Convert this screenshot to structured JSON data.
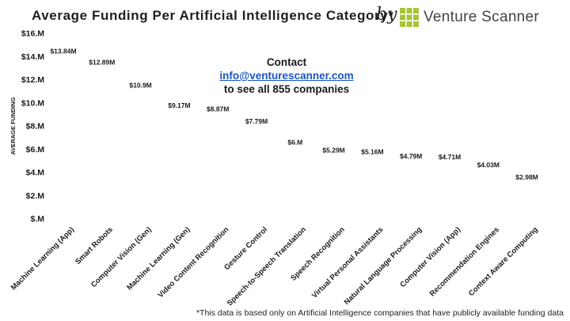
{
  "header": {
    "title": "Average Funding Per Artificial Intelligence Category*",
    "by": "by",
    "brand": "Venture Scanner",
    "brand_icon": "grid-logo-icon",
    "brand_color": "#a8c43a"
  },
  "contact": {
    "line1": "Contact",
    "email": "info@venturescanner.com",
    "line3": "to see all 855 companies"
  },
  "footnote": "*This data is based only on Artificial Intelligence companies that have publicly available funding data",
  "chart_data": {
    "type": "bar",
    "style": "pictograph",
    "icon": "robot-icon",
    "unit_per_icon": 2,
    "ylabel": "AVERAGE FUNDING",
    "ylim": [
      0,
      16
    ],
    "yticks": [
      0,
      2,
      4,
      6,
      8,
      10,
      12,
      14,
      16
    ],
    "ytick_labels": [
      "$.M",
      "$2.M",
      "$4.M",
      "$6.M",
      "$8.M",
      "$10.M",
      "$12.M",
      "$14.M",
      "$16.M"
    ],
    "grid": false,
    "categories": [
      "Machine Learning (App)",
      "Smart Robots",
      "Computer Vision (Gen)",
      "Machine Learning (Gen)",
      "Video Content Recognition",
      "Gesture Control",
      "Speech-to-Speech Translation",
      "Speech Recognition",
      "Virtual Personal Assistants",
      "Natural Language Processing",
      "Computer Vision (App)",
      "Recommendation Engines",
      "Context Aware Computing"
    ],
    "values": [
      13.84,
      12.89,
      10.9,
      9.17,
      8.87,
      7.79,
      6.0,
      5.29,
      5.16,
      4.79,
      4.71,
      4.03,
      2.98
    ],
    "data_labels": [
      "$13.84M",
      "$12.89M",
      "$10.9M",
      "$9.17M",
      "$8.87M",
      "$7.79M",
      "$6.M",
      "$5.29M",
      "$5.16M",
      "$4.79M",
      "$4.71M",
      "$4.03M",
      "$2.98M"
    ]
  }
}
